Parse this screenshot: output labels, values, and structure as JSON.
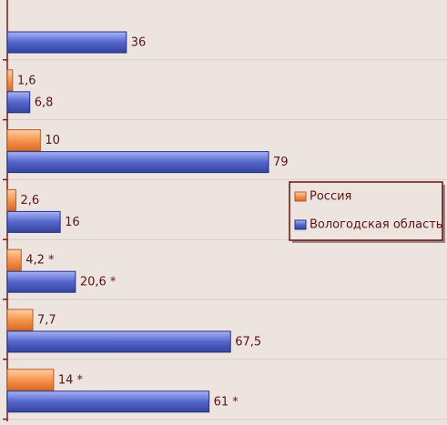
{
  "chart_data": {
    "type": "bar",
    "orientation": "horizontal",
    "categories": [
      null,
      null,
      null,
      null,
      null,
      null,
      null
    ],
    "series": [
      {
        "name": "Россия",
        "color": "#f5964f",
        "values": [
          null,
          1.6,
          10,
          2.6,
          4.2,
          7.7,
          14
        ],
        "value_labels": [
          null,
          "1,6",
          "10",
          "2,6",
          "4,2 *",
          "7,7",
          "14 *"
        ]
      },
      {
        "name": "Вологодская область",
        "color": "#5566cc",
        "values": [
          36,
          6.8,
          79,
          16,
          20.6,
          67.5,
          61
        ],
        "value_labels": [
          "36",
          "6,8",
          "79",
          "16",
          "20,6 *",
          "67,5",
          "61 *"
        ]
      }
    ],
    "legend": "right"
  }
}
